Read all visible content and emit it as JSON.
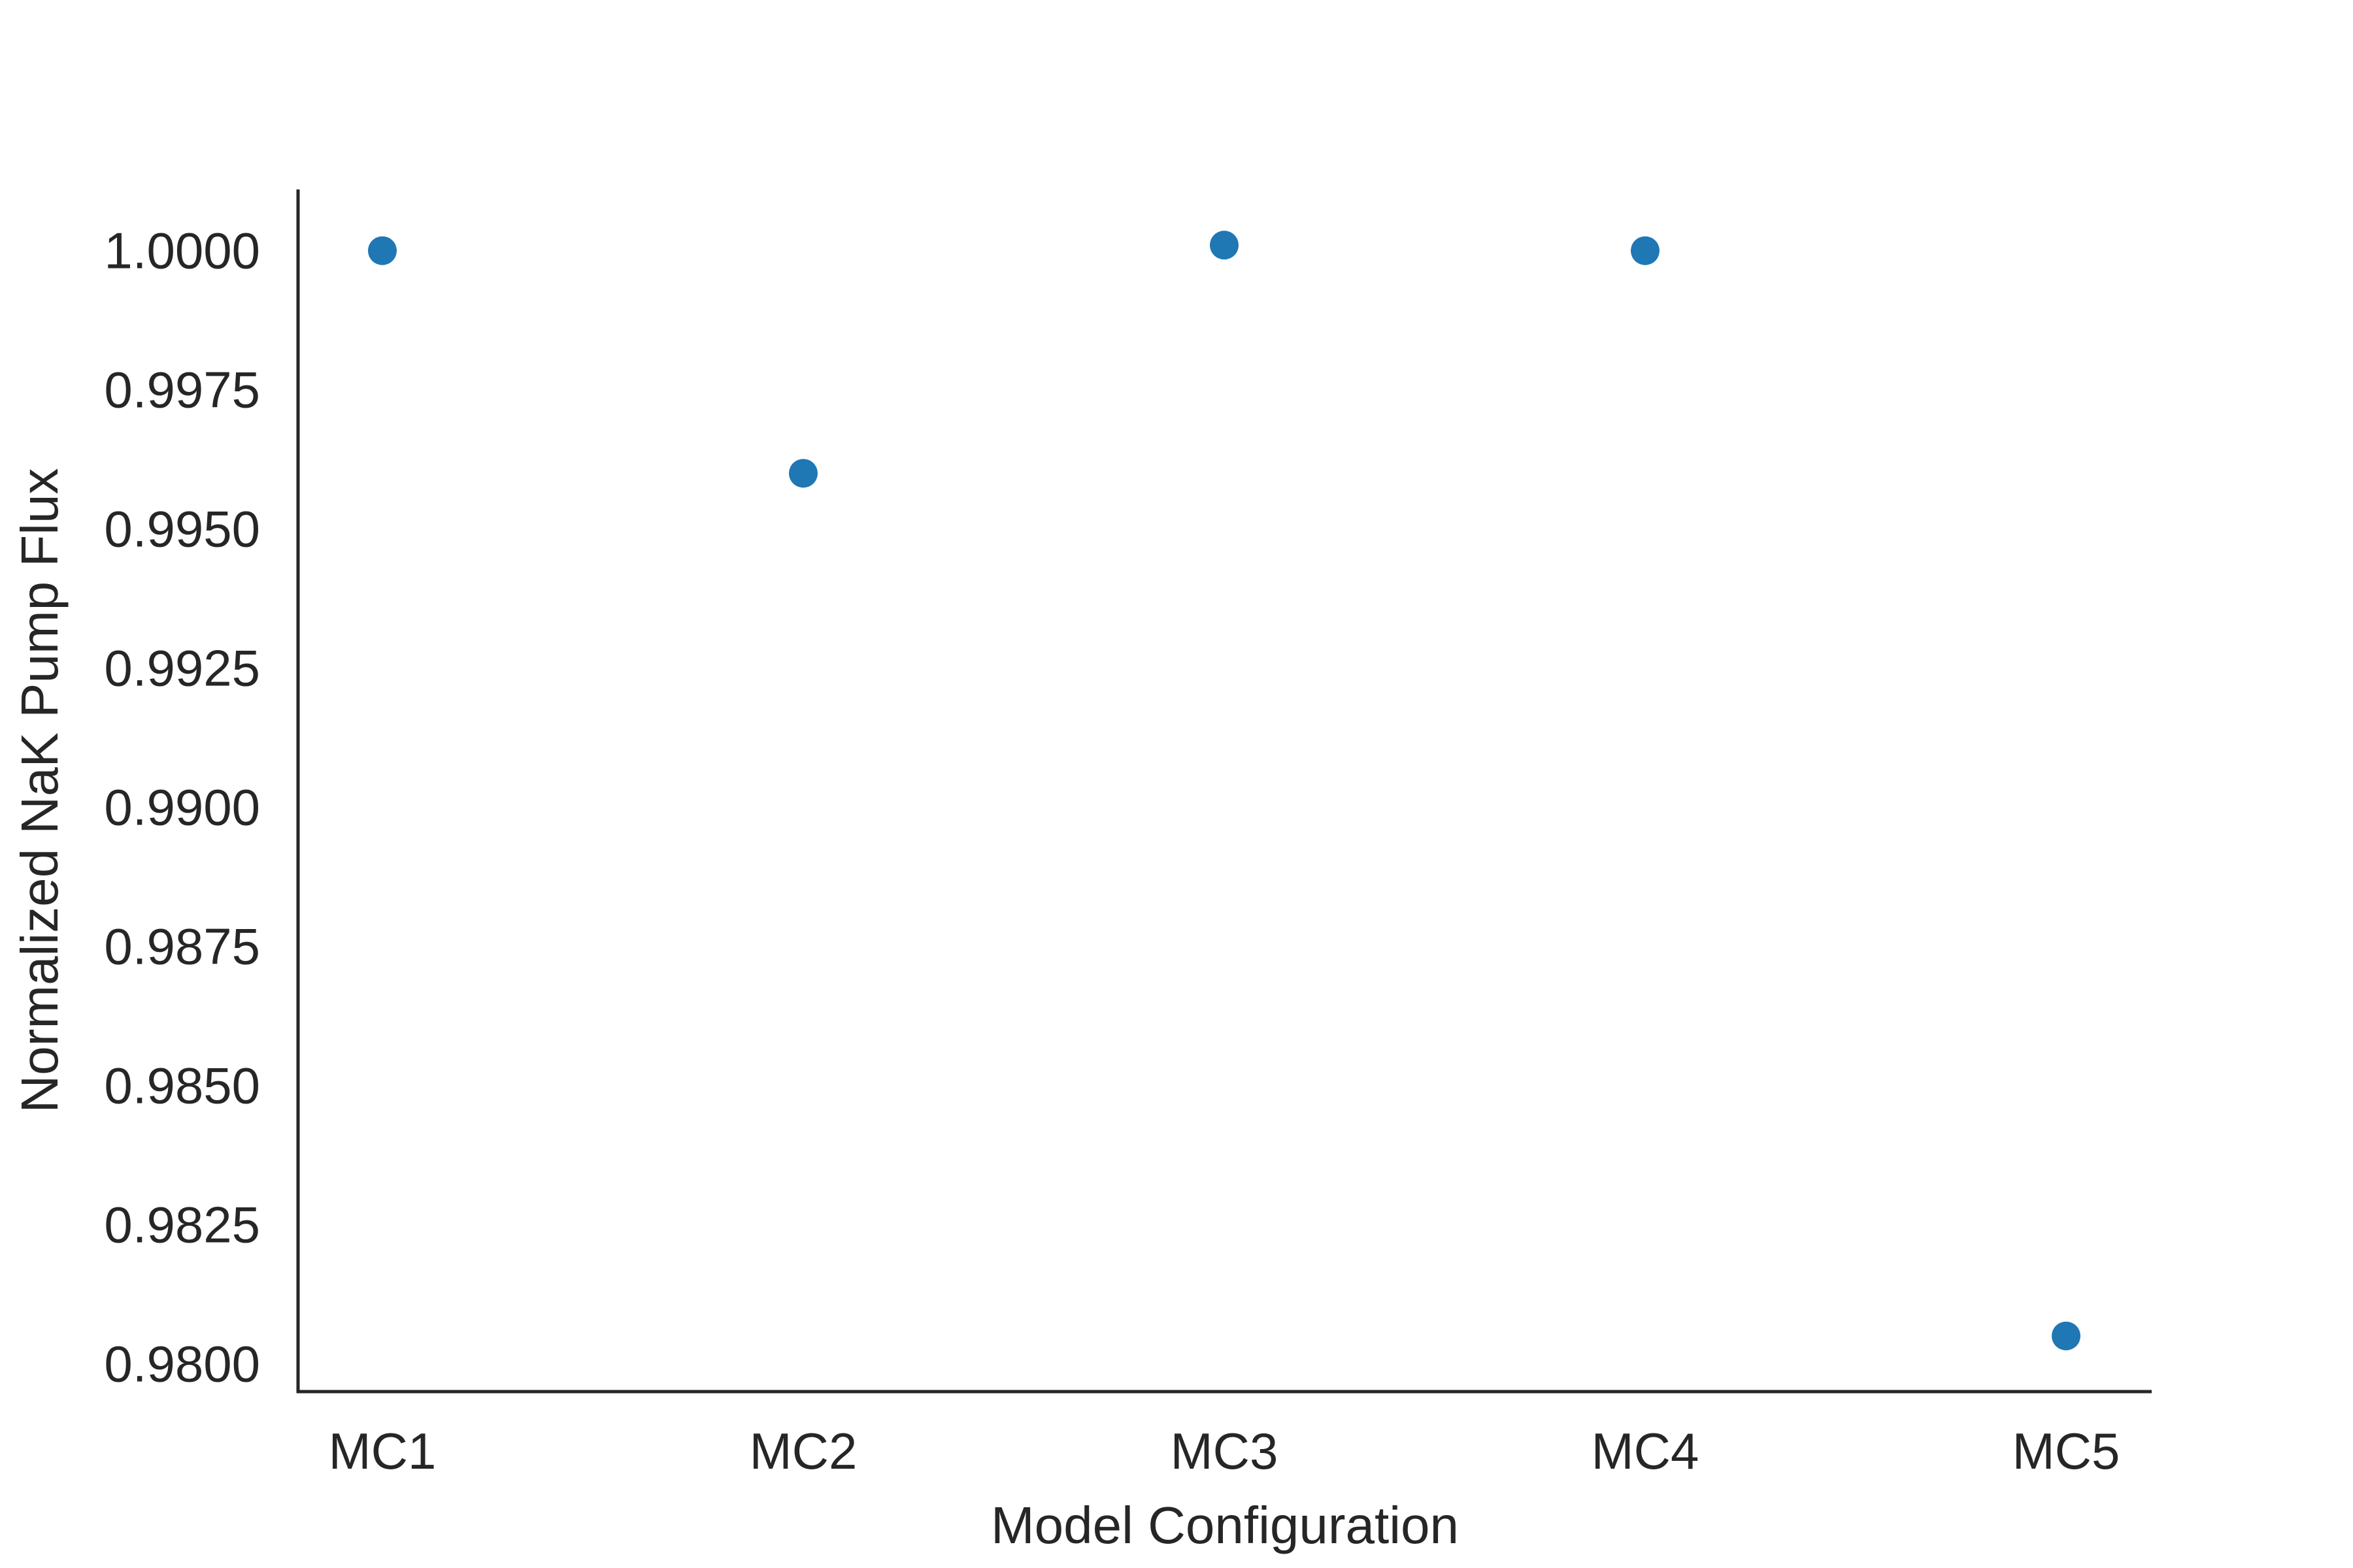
{
  "chart_data": {
    "type": "scatter",
    "title": "",
    "xlabel": "Model Configuration",
    "ylabel": "Normalized NaK Pump Flux",
    "categories": [
      "MC1",
      "MC2",
      "MC3",
      "MC4",
      "MC5"
    ],
    "values": [
      1.0,
      0.996,
      1.0001,
      1.0,
      0.9805
    ],
    "ylim": [
      0.9795,
      1.0011
    ],
    "yticks": [
      "0.9800",
      "0.9825",
      "0.9850",
      "0.9875",
      "0.9900",
      "0.9925",
      "0.9950",
      "0.9975",
      "1.0000"
    ],
    "grid": false,
    "legend": "none",
    "marker_color": "#1f77b4",
    "axis_color": "#262626"
  }
}
